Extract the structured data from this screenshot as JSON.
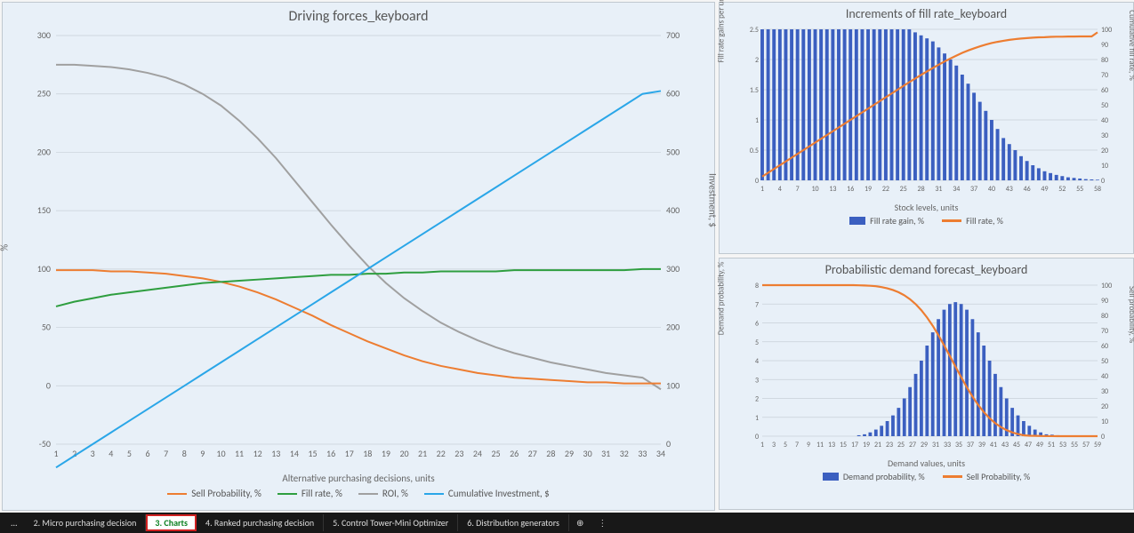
{
  "mainChart": {
    "title": "Driving forces_keyboard",
    "xLabel": "Alternative purchasing decisions, units",
    "yLeftLabel": "%",
    "yRightLabel": "Investment, $",
    "xTicks": [
      1,
      2,
      3,
      4,
      5,
      6,
      7,
      8,
      9,
      10,
      11,
      12,
      13,
      14,
      15,
      16,
      17,
      18,
      19,
      20,
      21,
      22,
      23,
      24,
      25,
      26,
      27,
      28,
      29,
      30,
      31,
      32,
      33,
      34
    ],
    "yLeftTicks": [
      -50,
      0,
      50,
      100,
      150,
      200,
      250,
      300
    ],
    "yRightTicks": [
      0,
      100,
      200,
      300,
      400,
      500,
      600,
      700
    ],
    "yLeftMin": -50,
    "yLeftMax": 300,
    "yRightMin": 0,
    "yRightMax": 700,
    "series": {
      "sellProb": {
        "label": "Sell Probability, %",
        "color": "#ed7d31",
        "data": [
          99,
          99,
          99,
          98,
          98,
          97,
          96,
          94,
          92,
          89,
          85,
          80,
          74,
          67,
          60,
          52,
          45,
          38,
          32,
          26,
          21,
          17,
          14,
          11,
          9,
          7,
          6,
          5,
          4,
          3,
          3,
          2,
          2,
          2
        ]
      },
      "fillRate": {
        "label": "Fill rate, %",
        "color": "#2e9e3f",
        "data": [
          68,
          72,
          75,
          78,
          80,
          82,
          84,
          86,
          88,
          89,
          90,
          91,
          92,
          93,
          94,
          95,
          95,
          96,
          96,
          97,
          97,
          98,
          98,
          98,
          98,
          99,
          99,
          99,
          99,
          99,
          99,
          99,
          100,
          100
        ]
      },
      "roi": {
        "label": "ROI, %",
        "color": "#a0a0a0",
        "data": [
          275,
          275,
          274,
          273,
          271,
          268,
          264,
          258,
          250,
          240,
          227,
          212,
          195,
          176,
          157,
          138,
          120,
          103,
          88,
          75,
          64,
          54,
          46,
          39,
          33,
          28,
          24,
          20,
          17,
          14,
          11,
          9,
          7,
          -3
        ]
      },
      "cumInv": {
        "label": "Cumulative Investment, $",
        "color": "#2aa6e8",
        "axis": "right",
        "data": [
          -40,
          -20,
          0,
          20,
          40,
          60,
          80,
          100,
          120,
          140,
          160,
          180,
          200,
          220,
          240,
          260,
          280,
          300,
          320,
          340,
          360,
          380,
          400,
          420,
          440,
          460,
          480,
          500,
          520,
          540,
          560,
          580,
          600,
          605
        ]
      }
    },
    "background": "#e8f0f8",
    "gridColor": "#c8d0d8"
  },
  "incChart": {
    "title": "Increments of fill rate_keyboard",
    "xLabel": "Stock levels, units",
    "yLeftLabel": "Fill rate gains per unit of stock, %",
    "yRightLabel": "Cumulative fill rate, %",
    "xTicks": [
      1,
      4,
      7,
      10,
      13,
      16,
      19,
      22,
      25,
      28,
      31,
      34,
      37,
      40,
      43,
      46,
      49,
      52,
      55,
      58
    ],
    "yLeftTicks": [
      0.0,
      0.5,
      1.0,
      1.5,
      2.0,
      2.5
    ],
    "yRightTicks": [
      0,
      10,
      20,
      30,
      40,
      50,
      60,
      70,
      80,
      90,
      100
    ],
    "yLeftMin": 0,
    "yLeftMax": 2.5,
    "yRightMin": 0,
    "yRightMax": 100,
    "bars": {
      "label": "Fill rate gain, %",
      "color": "#3b5fc0",
      "data": [
        2.5,
        2.5,
        2.5,
        2.5,
        2.5,
        2.5,
        2.5,
        2.5,
        2.5,
        2.5,
        2.5,
        2.5,
        2.5,
        2.5,
        2.5,
        2.5,
        2.5,
        2.5,
        2.5,
        2.5,
        2.5,
        2.5,
        2.5,
        2.5,
        2.5,
        2.5,
        2.45,
        2.4,
        2.35,
        2.3,
        2.2,
        2.1,
        2.0,
        1.9,
        1.75,
        1.6,
        1.45,
        1.3,
        1.15,
        1.0,
        0.85,
        0.7,
        0.6,
        0.5,
        0.4,
        0.32,
        0.25,
        0.2,
        0.15,
        0.12,
        0.09,
        0.07,
        0.05,
        0.04,
        0.03,
        0.02,
        0.015,
        0.01
      ]
    },
    "line": {
      "label": "Fill rate, %",
      "color": "#ed7d31",
      "data": [
        2.5,
        5,
        7.5,
        10,
        12.5,
        15,
        17.5,
        20,
        22.5,
        25,
        27.5,
        30,
        32.5,
        35,
        37.5,
        40,
        42.5,
        45,
        47.5,
        50,
        52.5,
        55,
        57.5,
        60,
        62.5,
        65,
        67.4,
        69.8,
        72.1,
        74.4,
        76.6,
        78.7,
        80.7,
        82.6,
        84.4,
        86,
        87.4,
        88.7,
        89.9,
        90.9,
        91.7,
        92.4,
        93,
        93.5,
        93.9,
        94.2,
        94.5,
        94.7,
        94.8,
        95,
        95.1,
        95.1,
        95.2,
        95.2,
        95.3,
        95.3,
        95.3,
        98
      ]
    }
  },
  "probChart": {
    "title": "Probabilistic demand forecast_keyboard",
    "xLabel": "Demand values, units",
    "yLeftLabel": "Demand probability, %",
    "yRightLabel": "Sell probability, %",
    "xTicks": [
      1,
      3,
      5,
      7,
      9,
      11,
      13,
      15,
      17,
      19,
      21,
      23,
      25,
      27,
      29,
      31,
      33,
      35,
      37,
      39,
      41,
      43,
      45,
      47,
      49,
      51,
      53,
      55,
      57,
      59
    ],
    "yLeftTicks": [
      0,
      1,
      2,
      3,
      4,
      5,
      6,
      7,
      8
    ],
    "yRightTicks": [
      0,
      10,
      20,
      30,
      40,
      50,
      60,
      70,
      80,
      90,
      100
    ],
    "yLeftMin": 0,
    "yLeftMax": 8,
    "yRightMin": 0,
    "yRightMax": 100,
    "bars": {
      "label": "Demand probability, %",
      "color": "#3b5fc0",
      "data": [
        0,
        0,
        0,
        0,
        0,
        0,
        0,
        0,
        0,
        0,
        0,
        0,
        0,
        0,
        0,
        0,
        0,
        0.05,
        0.1,
        0.2,
        0.35,
        0.55,
        0.8,
        1.1,
        1.5,
        2.0,
        2.6,
        3.3,
        4.0,
        4.8,
        5.5,
        6.2,
        6.7,
        7.0,
        7.1,
        7.0,
        6.7,
        6.2,
        5.5,
        4.8,
        4.0,
        3.3,
        2.6,
        2.0,
        1.5,
        1.1,
        0.8,
        0.55,
        0.35,
        0.2,
        0.1,
        0.08,
        0.05,
        0.03,
        0.02,
        0.01,
        0.01,
        0,
        0,
        0
      ]
    },
    "line": {
      "label": "Sell Probability, %",
      "color": "#ed7d31",
      "data": [
        100,
        100,
        100,
        100,
        100,
        100,
        100,
        100,
        100,
        100,
        100,
        100,
        100,
        100,
        100,
        100,
        100,
        99.9,
        99.8,
        99.6,
        99.3,
        98.7,
        97.9,
        96.8,
        95.3,
        93.3,
        90.7,
        87.4,
        83.4,
        78.6,
        73.1,
        66.9,
        60.2,
        53.2,
        46.1,
        39.1,
        32.4,
        26.2,
        20.7,
        15.9,
        11.9,
        8.6,
        6.0,
        4.0,
        2.5,
        1.4,
        0.6,
        0.3,
        0.2,
        0.1,
        0.05,
        0.03,
        0.02,
        0.01,
        0,
        0,
        0,
        0,
        0,
        0
      ]
    }
  },
  "tabs": {
    "items": [
      {
        "label": "2. Micro purchasing decision",
        "active": false
      },
      {
        "label": "3. Charts",
        "active": true
      },
      {
        "label": "4. Ranked purchasing decision",
        "active": false
      },
      {
        "label": "5. Control Tower-Mini Optimizer",
        "active": false
      },
      {
        "label": "6. Distribution generators",
        "active": false
      }
    ]
  }
}
